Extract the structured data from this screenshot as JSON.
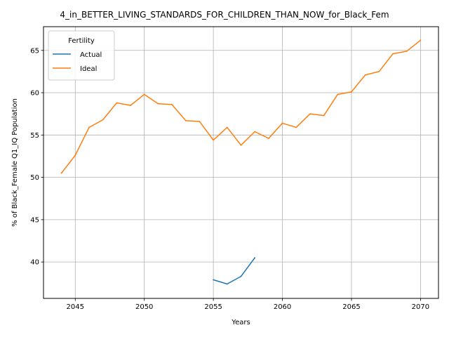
{
  "chart_data": {
    "type": "line",
    "title": "4_in_BETTER_LIVING_STANDARDS_FOR_CHILDREN_THAN_NOW_for_Black_Fem",
    "xlabel": "Years",
    "ylabel": "% of Black_Female Q1_IQ Population",
    "xlim": [
      2042.7,
      2071.3
    ],
    "ylim": [
      35.7,
      67.8
    ],
    "xticks": [
      2045,
      2050,
      2055,
      2060,
      2065,
      2070
    ],
    "yticks": [
      40,
      45,
      50,
      55,
      60,
      65
    ],
    "grid": true,
    "legend": {
      "title": "Fertility",
      "placement": "top-left"
    },
    "series": [
      {
        "name": "Actual",
        "color": "#1f77b4",
        "x": [
          2055,
          2056,
          2057,
          2058
        ],
        "y": [
          37.9,
          37.4,
          38.3,
          40.5
        ]
      },
      {
        "name": "Ideal",
        "color": "#ff7f0e",
        "x": [
          2044,
          2045,
          2046,
          2047,
          2048,
          2049,
          2050,
          2051,
          2052,
          2053,
          2054,
          2055,
          2056,
          2057,
          2058,
          2059,
          2060,
          2061,
          2062,
          2063,
          2064,
          2065,
          2066,
          2067,
          2068,
          2069,
          2070
        ],
        "y": [
          50.5,
          52.6,
          55.9,
          56.8,
          58.8,
          58.5,
          59.8,
          58.7,
          58.6,
          56.7,
          56.6,
          54.4,
          55.9,
          53.8,
          55.4,
          54.6,
          56.4,
          55.9,
          57.5,
          57.3,
          59.8,
          60.1,
          62.1,
          62.5,
          64.6,
          64.9,
          66.2
        ]
      }
    ]
  }
}
